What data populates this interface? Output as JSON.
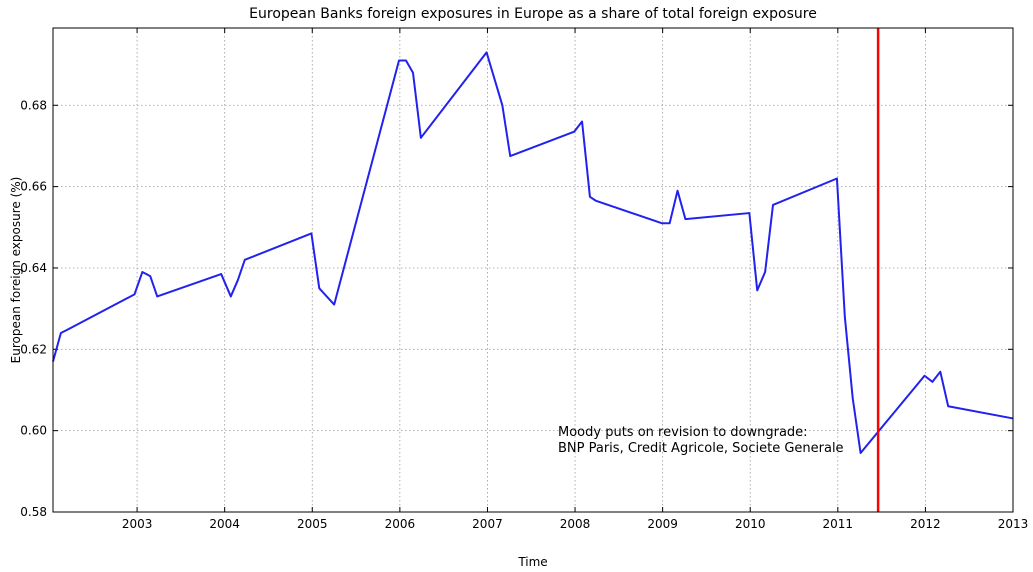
{
  "chart_data": {
    "type": "line",
    "title": "European Banks foreign exposures in Europe as a share of total foreign exposure",
    "xlabel": "Time",
    "ylabel": "European foreign exposure (%)",
    "annotation": [
      "Moody puts on revision to downgrade:",
      "BNP Paris, Credit Agricole, Societe Generale"
    ],
    "vline": {
      "x": 2011.46,
      "color": "#ff0000"
    },
    "xlim": [
      2002.04,
      2013
    ],
    "xticks": [
      2003,
      2004,
      2005,
      2006,
      2007,
      2008,
      2009,
      2010,
      2011,
      2012,
      2013
    ],
    "ylim": [
      0.58,
      0.699
    ],
    "yticks": [
      0.58,
      {
        "value": 0.6,
        "label": "0.60"
      },
      0.62,
      0.64,
      0.66,
      0.68
    ],
    "grid": true,
    "x": [
      2002.04,
      2002.13,
      2002.22,
      2002.97,
      2003.06,
      2003.15,
      2003.23,
      2003.96,
      2004.07,
      2004.15,
      2004.23,
      2004.99,
      2005.08,
      2005.25,
      2005.99,
      2006.07,
      2006.15,
      2006.24,
      2006.99,
      2007.17,
      2007.26,
      2007.99,
      2008.08,
      2008.17,
      2008.24,
      2008.99,
      2009.08,
      2009.17,
      2009.26,
      2009.99,
      2010.08,
      2010.17,
      2010.26,
      2010.99,
      2011.08,
      2011.17,
      2011.26,
      2011.99,
      2012.08,
      2012.17,
      2012.26,
      2013.0
    ],
    "series": [
      {
        "color": "#2222ee",
        "values": [
          0.617,
          0.624,
          0.625,
          0.6335,
          0.639,
          0.638,
          0.633,
          0.6385,
          0.633,
          0.637,
          0.642,
          0.6485,
          0.635,
          0.631,
          0.691,
          0.691,
          0.688,
          0.672,
          0.693,
          0.68,
          0.6675,
          0.6735,
          0.676,
          0.6575,
          0.6565,
          0.651,
          0.651,
          0.659,
          0.652,
          0.6535,
          0.6345,
          0.639,
          0.6555,
          0.662,
          0.628,
          0.608,
          0.5945,
          0.6135,
          0.612,
          0.6145,
          0.606,
          0.603
        ]
      }
    ]
  }
}
